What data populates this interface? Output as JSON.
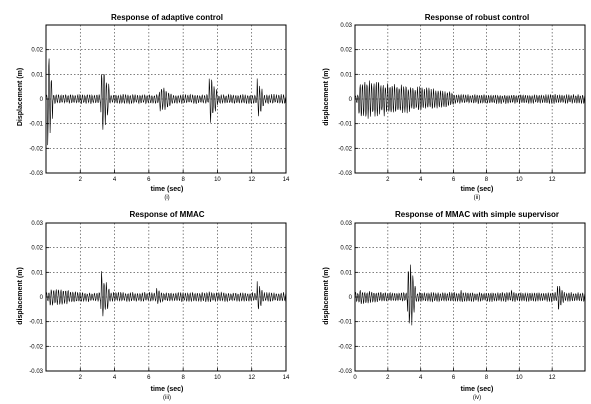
{
  "chart_data": [
    {
      "type": "line",
      "title": "Response of adaptive control",
      "xlabel": "time (sec)",
      "ylabel": "Displacement (m)",
      "caption": "(i)",
      "xlim": [
        0,
        14
      ],
      "ylim": [
        -0.03,
        0.03
      ],
      "xticks": [
        "2",
        "4",
        "6",
        "8",
        "10",
        "12",
        "14"
      ],
      "yticks": [
        "0.02",
        "0.01",
        "0",
        "-0.01",
        "-0.02",
        "-0.03"
      ],
      "grid": true,
      "series": [
        {
          "color": "#000000",
          "baseline_amplitude": 0.002,
          "bursts": [
            {
              "t": 0.1,
              "amplitude": 0.022,
              "duration": 0.3
            },
            {
              "t": 3.2,
              "amplitude": 0.017,
              "duration": 0.5
            },
            {
              "t": 6.6,
              "amplitude": 0.007,
              "duration": 0.8
            },
            {
              "t": 9.5,
              "amplitude": 0.012,
              "duration": 0.5
            },
            {
              "t": 12.3,
              "amplitude": 0.009,
              "duration": 0.4
            }
          ]
        }
      ]
    },
    {
      "type": "line",
      "title": "Response of robust control",
      "xlabel": "time (sec)",
      "ylabel": "displacement (m)",
      "caption": "(ii)",
      "xlim": [
        0,
        14
      ],
      "ylim": [
        -0.03,
        0.03
      ],
      "xticks": [
        "2",
        "4",
        "6",
        "8",
        "10",
        "12"
      ],
      "yticks": [
        "0.03",
        "0.02",
        "0.01",
        "0",
        "-0.01",
        "-0.02",
        "-0.03"
      ],
      "grid": true,
      "series": [
        {
          "color": "#000000",
          "baseline_amplitude": 0.002,
          "bursts": [
            {
              "t": 0.2,
              "amplitude": 0.009,
              "duration": 5.8
            }
          ]
        }
      ]
    },
    {
      "type": "line",
      "title": "Response of MMAC",
      "xlabel": "time (sec)",
      "ylabel": "displacement (m)",
      "caption": "(iii)",
      "xlim": [
        0,
        14
      ],
      "ylim": [
        -0.03,
        0.03
      ],
      "xticks": [
        "2",
        "4",
        "6",
        "8",
        "10",
        "12",
        "14"
      ],
      "yticks": [
        "0.03",
        "0.02",
        "0.01",
        "0",
        "-0.01",
        "-0.02",
        "-0.03"
      ],
      "grid": true,
      "series": [
        {
          "color": "#000000",
          "baseline_amplitude": 0.002,
          "bursts": [
            {
              "t": 0.2,
              "amplitude": 0.004,
              "duration": 2.8
            },
            {
              "t": 3.2,
              "amplitude": 0.012,
              "duration": 0.5
            },
            {
              "t": 6.4,
              "amplitude": 0.004,
              "duration": 0.6
            },
            {
              "t": 9.5,
              "amplitude": 0.003,
              "duration": 0.4
            },
            {
              "t": 12.3,
              "amplitude": 0.007,
              "duration": 0.4
            }
          ]
        }
      ]
    },
    {
      "type": "line",
      "title": "Response of MMAC with simple supervisor",
      "xlabel": "time (sec)",
      "ylabel": "displacement (m)",
      "caption": "(iv)",
      "xlim": [
        0,
        14
      ],
      "ylim": [
        -0.03,
        0.03
      ],
      "xticks": [
        "0",
        "2",
        "4",
        "6",
        "8",
        "10",
        "12"
      ],
      "yticks": [
        "0.03",
        "0.02",
        "0.01",
        "0",
        "-0.01",
        "-0.02",
        "-0.03"
      ],
      "grid": true,
      "series": [
        {
          "color": "#000000",
          "baseline_amplitude": 0.002,
          "bursts": [
            {
              "t": 0.2,
              "amplitude": 0.003,
              "duration": 2.8
            },
            {
              "t": 3.2,
              "amplitude": 0.018,
              "duration": 0.5
            },
            {
              "t": 6.4,
              "amplitude": 0.003,
              "duration": 0.6
            },
            {
              "t": 9.5,
              "amplitude": 0.003,
              "duration": 0.4
            },
            {
              "t": 12.3,
              "amplitude": 0.007,
              "duration": 0.4
            }
          ]
        }
      ]
    }
  ]
}
